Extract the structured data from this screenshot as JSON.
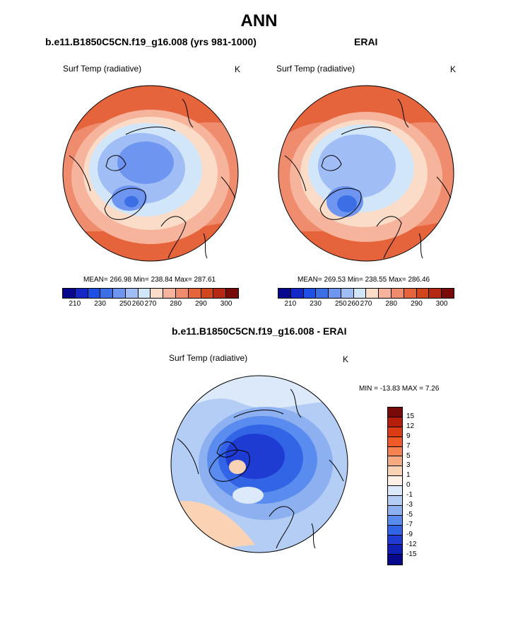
{
  "title": "ANN",
  "panels": [
    {
      "title": "b.e11.B1850C5CN.f19_g16.008 (yrs 981-1000)",
      "variable": "Surf Temp (radiative)",
      "units": "K",
      "stats": "MEAN= 266.98  Min= 238.84  Max= 287.61"
    },
    {
      "title": "ERAI",
      "variable": "Surf Temp (radiative)",
      "units": "K",
      "stats": "MEAN= 269.53  Min= 238.55  Max= 286.46"
    },
    {
      "title": "b.e11.B1850C5CN.f19_g16.008 - ERAI",
      "variable": "Surf Temp (radiative)",
      "units": "K",
      "stats": "MIN = -13.83 MAX =   7.26"
    }
  ],
  "colorbar_abs": {
    "colors": [
      "#08088c",
      "#1428c8",
      "#1e50e6",
      "#3c6ee6",
      "#6e96f0",
      "#a0bef5",
      "#d2e6fa",
      "#fadcc8",
      "#f5b49b",
      "#f08c6e",
      "#e6643c",
      "#d2461e",
      "#b42814",
      "#780a0a"
    ],
    "labels": [
      "210",
      "230",
      "250",
      "260",
      "270",
      "280",
      "290",
      "300"
    ]
  },
  "colorbar_diff": {
    "colors": [
      "#780a0a",
      "#b41e0a",
      "#dc3c14",
      "#f05a28",
      "#f58250",
      "#f5aa82",
      "#fad2b4",
      "#fff0e6",
      "#dce9fa",
      "#b4cdf5",
      "#8cb0f0",
      "#5a8cf0",
      "#3264e6",
      "#1e3cd2",
      "#0f1eb4",
      "#08088c"
    ],
    "labels": [
      "15",
      "12",
      "9",
      "7",
      "5",
      "3",
      "1",
      "0",
      "-1",
      "-3",
      "-5",
      "-7",
      "-9",
      "-12",
      "-15"
    ]
  }
}
